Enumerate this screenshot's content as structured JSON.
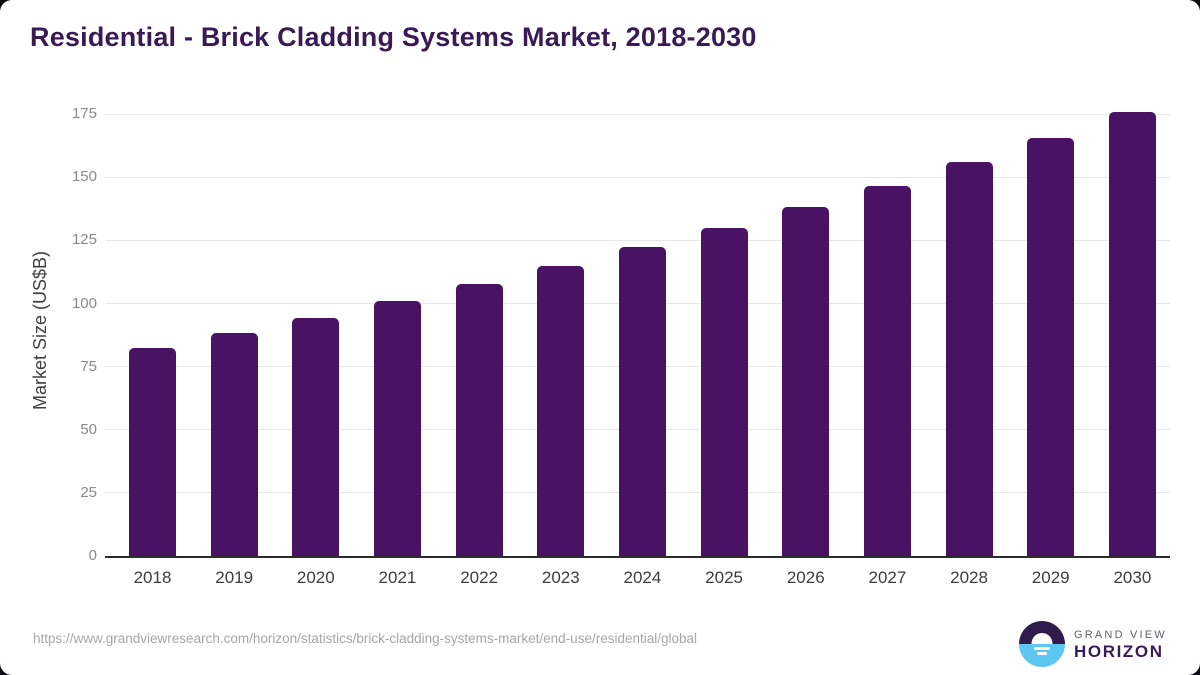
{
  "header": {
    "title": "Residential - Brick Cladding Systems Market, 2018-2030"
  },
  "chart_data": {
    "type": "bar",
    "title": "Residential - Brick Cladding Systems Market, 2018-2030",
    "categories": [
      "2018",
      "2019",
      "2020",
      "2021",
      "2022",
      "2023",
      "2024",
      "2025",
      "2026",
      "2027",
      "2028",
      "2029",
      "2030"
    ],
    "values": [
      82.3,
      88.2,
      94.1,
      100.8,
      107.6,
      114.8,
      122.3,
      129.8,
      138.1,
      146.4,
      155.9,
      165.4,
      175.9
    ],
    "xlabel": "",
    "ylabel": "Market Size (US$B)",
    "ylim": [
      0,
      179
    ],
    "yticks": [
      0,
      25,
      50,
      75,
      100,
      125,
      150,
      175
    ],
    "grid": true,
    "legend": "none",
    "bar_color": "#4a1262"
  },
  "footer": {
    "source_url": "https://www.grandviewresearch.com/horizon/statistics/brick-cladding-systems-market/end-use/residential/global",
    "brand": {
      "top": "GRAND VIEW",
      "bottom": "HORIZON"
    }
  },
  "colors": {
    "bar": "#4a1262",
    "title_purple": "#3a1a55",
    "logo_purple": "#2f1c4d",
    "logo_blue": "#5ec6f2",
    "axis_line": "#2b2b2b",
    "gridline": "#e8e8e8"
  }
}
